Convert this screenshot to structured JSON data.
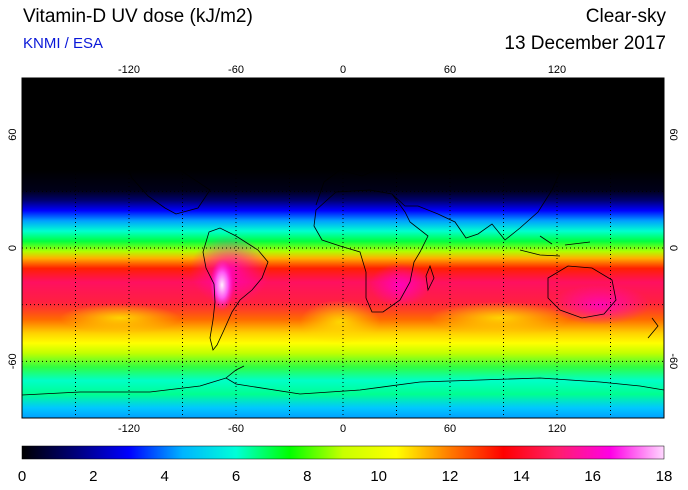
{
  "header": {
    "title": "Vitamin-D UV dose (kJ/m2)",
    "credit": "KNMI / ESA",
    "sky_condition": "Clear-sky",
    "date": "13 December 2017"
  },
  "map": {
    "projection": "equirectangular",
    "lon_range": [
      -180,
      180
    ],
    "lat_range": [
      -90,
      90
    ],
    "lon_ticks": [
      "-120",
      "-60",
      "0",
      "60",
      "120"
    ],
    "lat_ticks": [
      "60",
      "0",
      "-60"
    ],
    "gridline_style": "dotted"
  },
  "colorbar": {
    "min": 0,
    "max": 18,
    "labels": [
      "0",
      "2",
      "4",
      "6",
      "8",
      "10",
      "12",
      "14",
      "16",
      "18"
    ],
    "colors": [
      "#000000",
      "#00007a",
      "#0000ff",
      "#00b4ff",
      "#00ffd8",
      "#00ff00",
      "#c8ff00",
      "#ffff00",
      "#ff7a00",
      "#ff0000",
      "#ff1f6a",
      "#ff00e6",
      "#ffd8ff"
    ]
  }
}
